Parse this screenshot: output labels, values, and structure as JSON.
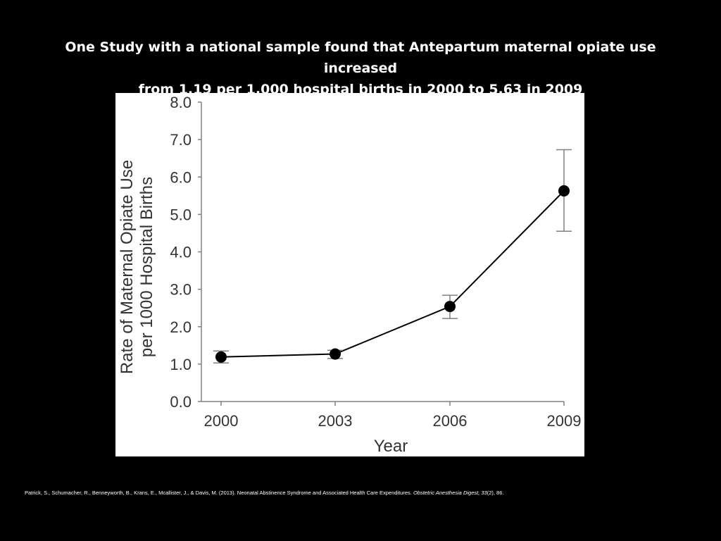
{
  "slide": {
    "title_line1": "One Study with a national sample found that Antepartum maternal opiate use increased",
    "title_line2": "from 1.19 per 1,000 hospital births in 2000 to 5.63 in 2009"
  },
  "citation": {
    "authors": "Patrick, S., Schumacher, R., Benneyworth, B., Krans, E., Mcallister, J., & Davis, M. (2013). Neonatal Abstinence Syndrome and Associated Health Care Expenditures.",
    "journal": "Obstetric Anesthesia Digest, 33",
    "issue_pages": "(2), 86."
  },
  "colors": {
    "background": "#000000",
    "text": "#ffffff",
    "panel": "#ffffff",
    "data": "#000000",
    "axis": "#808080",
    "tick_text": "#333333"
  },
  "chart_data": {
    "type": "line",
    "title": "",
    "xlabel": "Year",
    "ylabel_line1": "Rate of Maternal Opiate Use",
    "ylabel_line2": "per 1000 Hospital Births",
    "categories": [
      "2000",
      "2003",
      "2006",
      "2009"
    ],
    "y_tick_labels": [
      "0.0",
      "1.0",
      "2.0",
      "3.0",
      "4.0",
      "5.0",
      "6.0",
      "7.0",
      "8.0"
    ],
    "ylim": [
      0,
      8
    ],
    "grid": false,
    "series": [
      {
        "values": [
          1.19,
          1.27,
          2.54,
          5.63
        ],
        "error_low": [
          1.03,
          1.15,
          2.22,
          4.55
        ],
        "error_high": [
          1.35,
          1.37,
          2.84,
          6.73
        ]
      }
    ]
  }
}
